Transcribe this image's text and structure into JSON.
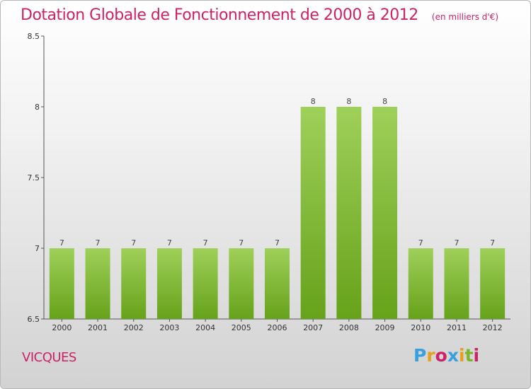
{
  "header": {
    "title": "Dotation Globale de Fonctionnement de 2000 à 2012",
    "subtitle": "(en milliers d'€)"
  },
  "commune": "VICQUES",
  "logo": {
    "text": "Proxiti",
    "letter_colors": [
      "#3aa0dd",
      "#e6a020",
      "#cc2266",
      "#3aa0dd",
      "#e6a020",
      "#7ab52a",
      "#cc2266"
    ]
  },
  "colors": {
    "bar_top": "#9fd05a",
    "bar_bottom": "#66a21a",
    "title": "#cc2266"
  },
  "chart_data": {
    "type": "bar",
    "title": "Dotation Globale de Fonctionnement de 2000 à 2012",
    "subtitle": "(en milliers d'€)",
    "categories": [
      "2000",
      "2001",
      "2002",
      "2003",
      "2004",
      "2005",
      "2006",
      "2007",
      "2008",
      "2009",
      "2010",
      "2011",
      "2012"
    ],
    "values": [
      7,
      7,
      7,
      7,
      7,
      7,
      7,
      8,
      8,
      8,
      7,
      7,
      7
    ],
    "data_labels": [
      "7",
      "7",
      "7",
      "7",
      "7",
      "7",
      "7",
      "8",
      "8",
      "8",
      "7",
      "7",
      "7"
    ],
    "ylim": [
      6.5,
      8.5
    ],
    "yticks": [
      6.5,
      7,
      7.5,
      8,
      8.5
    ],
    "ytick_labels": [
      "6.5",
      "7",
      "7.5",
      "8",
      "8.5"
    ],
    "grid": false,
    "legend": "none"
  }
}
